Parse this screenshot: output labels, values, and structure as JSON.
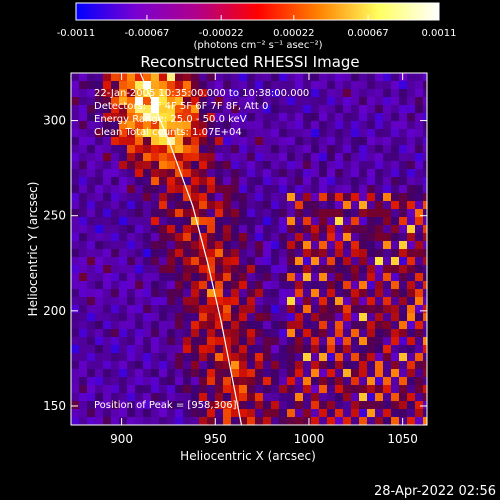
{
  "chart_data": {
    "type": "heatmap",
    "title": "Reconstructed RHESSI Image",
    "xlabel": "Heliocentric X (arcsec)",
    "ylabel": "Heliocentric Y (arcsec)",
    "xlim": [
      873,
      1063
    ],
    "ylim": [
      140,
      325
    ],
    "x_ticks": [
      900,
      950,
      1000,
      1050
    ],
    "y_ticks": [
      150,
      200,
      250,
      300
    ],
    "x_tick_labels": [
      "900",
      "950",
      "1000",
      "1050"
    ],
    "y_tick_labels": [
      "150",
      "200",
      "250",
      "300"
    ],
    "colorbar": {
      "range": [
        -0.0011,
        0.0011
      ],
      "ticks": [
        -0.0011,
        -0.00067,
        -0.00022,
        0.00022,
        0.00067,
        0.0011
      ],
      "tick_labels": [
        "-0.0011",
        "-0.00067",
        "-0.00022",
        "0.00022",
        "0.00067",
        "0.0011"
      ],
      "units_label": "(photons cm⁻² s⁻¹ asec⁻²)",
      "colors": [
        "#0000ff",
        "#7a00d0",
        "#b0008a",
        "#ff0000",
        "#ff8000",
        "#ffff60",
        "#ffffff"
      ]
    },
    "annotations": [
      "22-Jan-2005 10:35:00.000 to 10:38:00.000",
      "Detectors: 3F 4F 5F 6F 7F 8F, Att 0",
      "Energy Range: 25.0 - 50.0 keV",
      "Clean     Total counts: 1.07E+04"
    ],
    "peak_label": "Position of Peak = [958,306]",
    "peak": [
      958,
      306
    ],
    "limb_points": [
      [
        910,
        325
      ],
      [
        925,
        290
      ],
      [
        938,
        255
      ],
      [
        946,
        225
      ],
      [
        953,
        195
      ],
      [
        959,
        165
      ],
      [
        964,
        140
      ]
    ]
  },
  "timestamp": "28-Apr-2022 02:56"
}
